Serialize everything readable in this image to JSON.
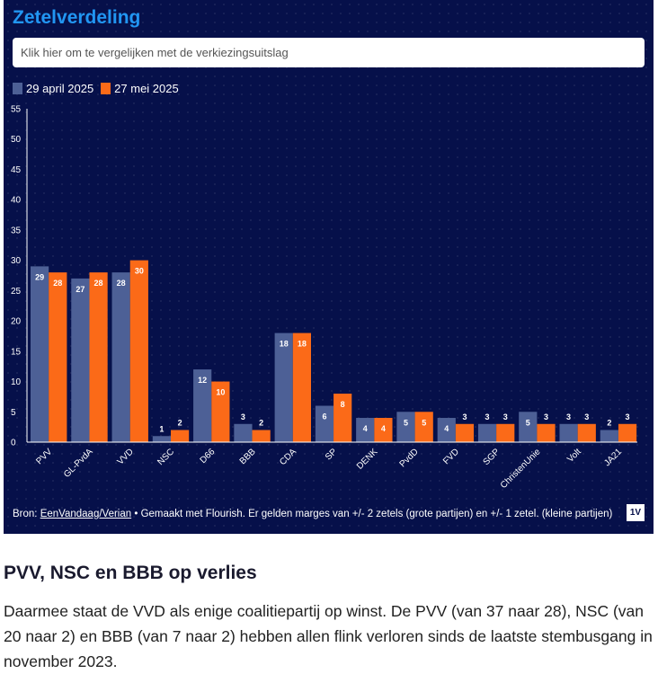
{
  "title": "Zetelverdeling",
  "compare_button": "Klik hier om te vergelijken met de verkiezingsuitslag",
  "colors": {
    "series1": "#4d6096",
    "series2": "#fb6a18",
    "background": "#06104a",
    "title": "#2196f3"
  },
  "footer": {
    "prefix": "Bron: ",
    "source": "EenVandaag/Verian",
    "rest": " • Gemaakt met Flourish. Er gelden marges van +/- 2 zetels (grote partijen) en +/- 1 zetel. (kleine partijen)",
    "logo": "1V"
  },
  "chart_data": {
    "type": "bar",
    "categories": [
      "PVV",
      "GL-PvdA",
      "VVD",
      "NSC",
      "D66",
      "BBB",
      "CDA",
      "SP",
      "DENK",
      "PvdD",
      "FVD",
      "SGP",
      "ChristenUnie",
      "Volt",
      "JA21"
    ],
    "series": [
      {
        "name": "29 april 2025",
        "values": [
          29,
          27,
          28,
          1,
          12,
          3,
          18,
          6,
          4,
          5,
          4,
          3,
          5,
          3,
          2
        ]
      },
      {
        "name": "27 mei 2025",
        "values": [
          28,
          28,
          30,
          2,
          10,
          2,
          18,
          8,
          4,
          5,
          3,
          3,
          3,
          3,
          3
        ]
      }
    ],
    "ylim": [
      0,
      55
    ],
    "yticks": [
      0,
      5,
      10,
      15,
      20,
      25,
      30,
      35,
      40,
      45,
      50,
      55
    ],
    "legend": "top-left",
    "grid": false
  },
  "article": {
    "heading": "PVV, NSC en BBB op verlies",
    "body": "Daarmee staat de VVD als enige coalitiepartij op winst. De PVV (van 37 naar 28), NSC (van 20 naar 2) en BBB (van 7 naar 2) hebben allen flink verloren sinds de laatste stembusgang in november 2023."
  }
}
